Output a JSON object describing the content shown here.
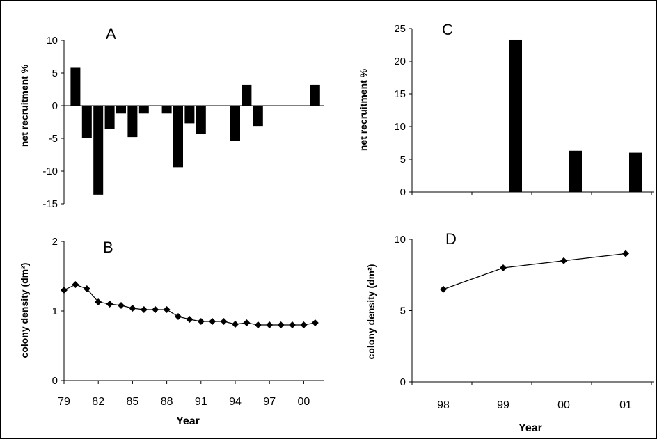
{
  "chart_data": [
    {
      "panel": "A",
      "type": "bar",
      "title": "A",
      "ylabel": "net recruitment %",
      "ylim": [
        -15,
        10
      ],
      "yticks": [
        "10",
        "5",
        "0",
        "-5",
        "-10",
        "-15"
      ],
      "x": [
        1980,
        1981,
        1982,
        1983,
        1984,
        1985,
        1986,
        1987,
        1988,
        1989,
        1990,
        1991,
        1992,
        1993,
        1994,
        1995,
        1996,
        1997,
        1998,
        1999,
        2000,
        2001
      ],
      "values": [
        5.8,
        -5.0,
        -13.6,
        -3.6,
        -1.2,
        -4.8,
        -1.2,
        0,
        -1.2,
        -9.4,
        -2.7,
        -4.3,
        0,
        0,
        -5.4,
        3.2,
        -3.1,
        0,
        0,
        0,
        0,
        3.2
      ]
    },
    {
      "panel": "B",
      "type": "line",
      "title": "B",
      "ylabel": "colony density (dm²)",
      "xlabel": "Year",
      "ylim": [
        0,
        2
      ],
      "yticks": [
        "2",
        "1",
        "0"
      ],
      "xticks": [
        "79",
        "82",
        "85",
        "88",
        "91",
        "94",
        "97",
        "00"
      ],
      "x": [
        1979,
        1980,
        1981,
        1982,
        1983,
        1984,
        1985,
        1986,
        1987,
        1988,
        1989,
        1990,
        1991,
        1992,
        1993,
        1994,
        1995,
        1996,
        1997,
        1998,
        1999,
        2000,
        2001
      ],
      "values": [
        1.3,
        1.38,
        1.32,
        1.13,
        1.1,
        1.08,
        1.04,
        1.02,
        1.02,
        1.02,
        0.92,
        0.88,
        0.85,
        0.85,
        0.85,
        0.81,
        0.83,
        0.8,
        0.8,
        0.8,
        0.8,
        0.8,
        0.83
      ]
    },
    {
      "panel": "C",
      "type": "bar",
      "title": "C",
      "ylabel": "net recruitment %",
      "ylim": [
        0,
        25
      ],
      "yticks": [
        "25",
        "20",
        "15",
        "10",
        "5",
        "0"
      ],
      "categories": [
        "98",
        "99",
        "00",
        "01"
      ],
      "values": [
        0,
        23.3,
        6.3,
        6.0
      ]
    },
    {
      "panel": "D",
      "type": "line",
      "title": "D",
      "ylabel": "colony density (dm²)",
      "xlabel": "Year",
      "ylim": [
        0,
        10
      ],
      "yticks": [
        "10",
        "5",
        "0"
      ],
      "categories": [
        "98",
        "99",
        "00",
        "01"
      ],
      "values": [
        6.5,
        8.0,
        8.5,
        9.0
      ]
    }
  ]
}
